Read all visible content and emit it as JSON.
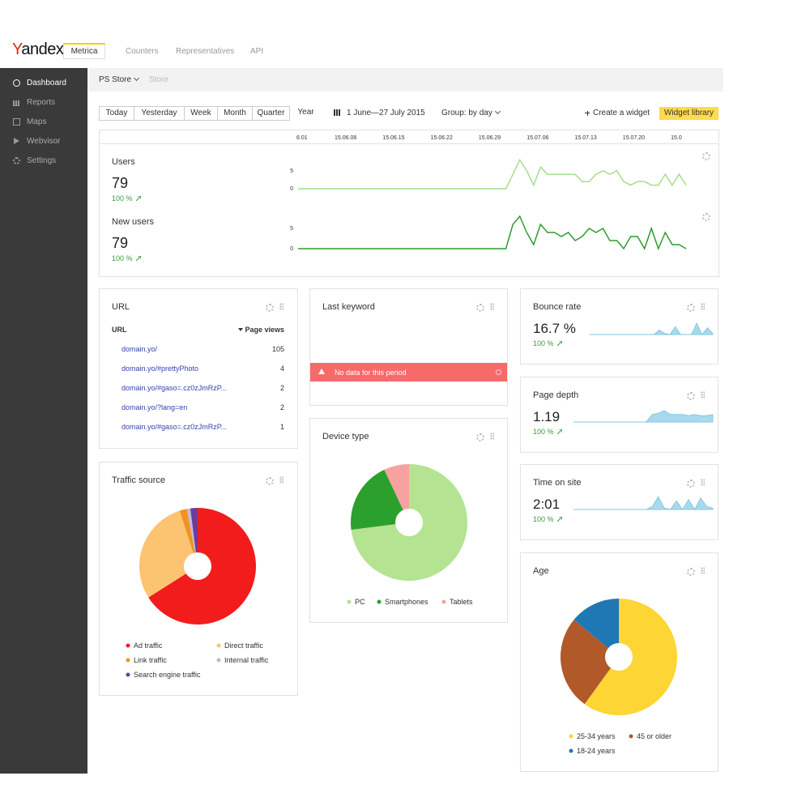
{
  "header": {
    "logo": "Yandex",
    "product": "Metrica",
    "nav": [
      "Counters",
      "Representatives",
      "API"
    ]
  },
  "sidebar": [
    "Dashboard",
    "Reports",
    "Maps",
    "Webvisor",
    "Settings"
  ],
  "subheader": {
    "counter": "PS Store",
    "breadcrumb": "Store"
  },
  "toolbar": {
    "periods": [
      "Today",
      "Yesterday",
      "Week",
      "Month",
      "Quarter",
      "Year"
    ],
    "date_range": "1 June—27 July 2015",
    "group": "Group: by day",
    "create": "Create a widget",
    "library": "Widget library"
  },
  "timeline": {
    "type": "line",
    "xticks": [
      "6.01",
      "15.06.08",
      "15.06.15",
      "15.06.22",
      "15.06.29",
      "15.07.06",
      "15.07.13",
      "15.07.20",
      "15.0"
    ],
    "ylim": [
      0,
      9
    ],
    "yticks": [
      0,
      5
    ],
    "metrics": [
      {
        "title": "Users",
        "value": 79,
        "change": "100 %",
        "color": "#a6dd8c",
        "values": [
          0,
          0,
          0,
          0,
          0,
          0,
          0,
          0,
          0,
          0,
          0,
          0,
          0,
          0,
          0,
          0,
          0,
          0,
          0,
          0,
          0,
          0,
          0,
          0,
          0,
          0,
          0,
          0,
          0,
          0,
          0,
          4,
          8,
          5,
          1,
          6,
          4,
          4,
          4,
          4,
          4,
          2,
          2,
          4,
          5,
          4,
          5,
          2,
          1,
          2,
          2,
          1,
          1,
          4,
          1,
          4,
          1
        ]
      },
      {
        "title": "New users",
        "value": 79,
        "change": "100 %",
        "color": "#2e9e2e",
        "values": [
          0,
          0,
          0,
          0,
          0,
          0,
          0,
          0,
          0,
          0,
          0,
          0,
          0,
          0,
          0,
          0,
          0,
          0,
          0,
          0,
          0,
          0,
          0,
          0,
          0,
          0,
          0,
          0,
          0,
          0,
          0,
          6,
          8,
          4,
          1,
          6,
          4,
          4,
          3,
          4,
          2,
          3,
          5,
          4,
          5,
          2,
          2,
          0,
          3,
          3,
          0,
          5,
          0,
          4,
          1,
          1,
          0
        ]
      }
    ]
  },
  "url_widget": {
    "title": "URL",
    "columns": [
      "URL",
      "Page views"
    ],
    "rows": [
      [
        "domain.yo/",
        105
      ],
      [
        "domain.yo/#prettyPhoto",
        4
      ],
      [
        "domain.yo/#gaso=.cz0zJmRzP...",
        2
      ],
      [
        "domain.yo/?lang=en",
        2
      ],
      [
        "domain.yo/#gaso=.cz0zJmRzP...",
        1
      ]
    ]
  },
  "keyword_widget": {
    "title": "Last keyword",
    "message": "No data for this period"
  },
  "bounce_rate": {
    "type": "area",
    "title": "Bounce rate",
    "value": "16.7 %",
    "change": "100 %",
    "color": "#a9d9ec",
    "values": [
      0,
      0,
      0,
      0,
      0,
      0,
      0,
      0,
      0,
      0,
      0,
      0,
      0,
      4,
      1,
      0,
      7,
      0,
      0,
      0,
      10,
      0,
      6,
      1
    ]
  },
  "page_depth": {
    "type": "area",
    "title": "Page depth",
    "value": 1.19,
    "change": "100 %",
    "color": "#a9d9ec",
    "values": [
      0,
      0,
      0,
      0,
      0,
      0,
      0,
      0,
      0,
      0,
      0,
      0,
      0,
      6,
      7,
      9,
      6,
      6,
      6,
      5,
      6,
      5,
      5,
      6
    ]
  },
  "time_on_site": {
    "type": "area",
    "title": "Time on site",
    "value": "2:01",
    "change": "100 %",
    "color": "#a9d9ec",
    "values": [
      0,
      0,
      0,
      0,
      0,
      0,
      0,
      0,
      0,
      0,
      0,
      0,
      0,
      2,
      9,
      1,
      0,
      6,
      0,
      7,
      0,
      8,
      2,
      1
    ]
  },
  "traffic_source": {
    "type": "pie",
    "title": "Traffic source",
    "categories": [
      "Ad traffic",
      "Direct traffic",
      "Link traffic",
      "Internal traffic",
      "Search engine traffic"
    ],
    "values": [
      66,
      29,
      2,
      1,
      2
    ],
    "colors": [
      "#f21c1c",
      "#fcc471",
      "#f2921f",
      "#c4b8d8",
      "#6a3d9a"
    ]
  },
  "device_type": {
    "type": "pie",
    "title": "Device type",
    "categories": [
      "PC",
      "Smartphones",
      "Tablets"
    ],
    "values": [
      73,
      20,
      7
    ],
    "colors": [
      "#b4e391",
      "#2ca02c",
      "#f7a1a1"
    ]
  },
  "age": {
    "type": "pie",
    "title": "Age",
    "categories": [
      "25-34 years",
      "45 or older",
      "18-24 years"
    ],
    "values": [
      60,
      26,
      14
    ],
    "colors": [
      "#fdd535",
      "#b15928",
      "#1f78b4"
    ]
  }
}
